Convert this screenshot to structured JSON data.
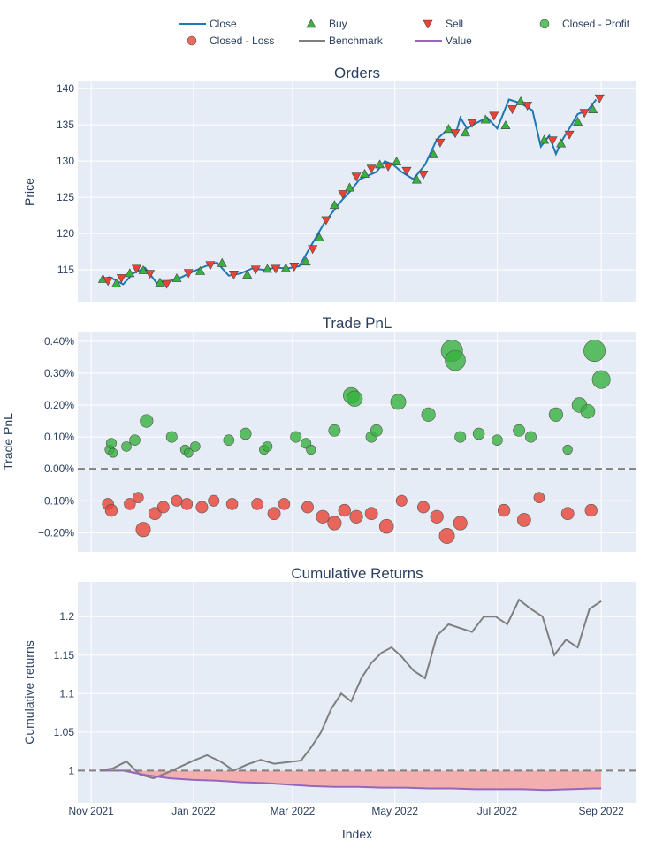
{
  "legend": [
    {
      "label": "Close",
      "kind": "line",
      "color": "#1f77b4"
    },
    {
      "label": "Buy",
      "kind": "triangle-up",
      "color": "#37B13F"
    },
    {
      "label": "Sell",
      "kind": "triangle-down",
      "color": "#EA4335"
    },
    {
      "label": "Closed - Profit",
      "kind": "circle",
      "color": "#37B13F"
    },
    {
      "label": "Closed - Loss",
      "kind": "circle",
      "color": "#EA4335"
    },
    {
      "label": "Benchmark",
      "kind": "line",
      "color": "#7f7f7f"
    },
    {
      "label": "Value",
      "kind": "line",
      "color": "#9467bd"
    }
  ],
  "colors": {
    "plot_bg": "#E5ECF6",
    "grid": "#ffffff",
    "close": "#1f77b4",
    "buy": "#37B13F",
    "sell": "#EA4335",
    "profit": "#37B13F",
    "loss": "#EA4335",
    "benchmark": "#7f7f7f",
    "value": "#9467bd",
    "drawdown_fill": "#F4A9A8",
    "zero_line": "#808080"
  },
  "xaxis": {
    "title": "Index",
    "ticks": [
      "Nov 2021",
      "Jan 2022",
      "Mar 2022",
      "May 2022",
      "Jul 2022",
      "Sep 2022"
    ],
    "tick_dates": [
      "2021-11-01",
      "2022-01-01",
      "2022-03-01",
      "2022-05-01",
      "2022-07-01",
      "2022-09-01"
    ],
    "range": [
      "2021-10-24",
      "2022-09-22"
    ]
  },
  "chart_data": [
    {
      "type": "line",
      "title": "Orders",
      "ylabel": "Price",
      "ylim": [
        110.5,
        141
      ],
      "yticks": [
        115,
        120,
        125,
        130,
        135,
        140
      ],
      "ytick_labels": [
        "115",
        "120",
        "125",
        "130",
        "135",
        "140"
      ],
      "series": [
        {
          "name": "Close",
          "x": [
            "2021-11-06",
            "2021-11-12",
            "2021-11-20",
            "2021-11-26",
            "2021-12-03",
            "2021-12-10",
            "2021-12-18",
            "2021-12-25",
            "2022-01-01",
            "2022-01-08",
            "2022-01-15",
            "2022-01-22",
            "2022-01-29",
            "2022-02-05",
            "2022-02-12",
            "2022-02-19",
            "2022-02-26",
            "2022-03-05",
            "2022-03-10",
            "2022-03-15",
            "2022-03-20",
            "2022-03-25",
            "2022-03-30",
            "2022-04-05",
            "2022-04-10",
            "2022-04-15",
            "2022-04-20",
            "2022-04-25",
            "2022-04-30",
            "2022-05-05",
            "2022-05-12",
            "2022-05-19",
            "2022-05-26",
            "2022-06-02",
            "2022-06-06",
            "2022-06-09",
            "2022-06-13",
            "2022-06-18",
            "2022-06-25",
            "2022-07-01",
            "2022-07-08",
            "2022-07-15",
            "2022-07-22",
            "2022-07-27",
            "2022-08-01",
            "2022-08-05",
            "2022-08-09",
            "2022-08-13",
            "2022-08-18",
            "2022-08-24",
            "2022-08-29"
          ],
          "y": [
            113.5,
            114.0,
            113.0,
            114.5,
            115.3,
            113.2,
            113.5,
            114.0,
            114.8,
            115.5,
            116.0,
            114.2,
            114.5,
            115.2,
            115.0,
            115.3,
            115.2,
            115.5,
            117.5,
            119.5,
            121.5,
            123.0,
            124.5,
            126.0,
            127.5,
            128.0,
            128.5,
            130.0,
            129.5,
            128.5,
            127.5,
            129.5,
            133.0,
            134.5,
            133.5,
            136.0,
            134.5,
            135.2,
            136.0,
            134.5,
            138.5,
            138.0,
            137.0,
            132.0,
            133.5,
            131.0,
            133.0,
            134.5,
            136.5,
            137.0,
            138.5
          ]
        }
      ],
      "buy_orders": {
        "x": [
          "2021-11-08",
          "2021-11-16",
          "2021-11-24",
          "2021-12-02",
          "2021-12-12",
          "2021-12-22",
          "2022-01-05",
          "2022-01-18",
          "2022-02-02",
          "2022-02-14",
          "2022-02-25",
          "2022-03-09",
          "2022-03-17",
          "2022-03-26",
          "2022-04-04",
          "2022-04-13",
          "2022-04-22",
          "2022-05-02",
          "2022-05-14",
          "2022-05-24",
          "2022-06-02",
          "2022-06-12",
          "2022-06-24",
          "2022-07-06",
          "2022-07-15",
          "2022-07-29",
          "2022-08-08",
          "2022-08-18",
          "2022-08-27"
        ],
        "y": [
          113.8,
          113.2,
          114.6,
          115.0,
          113.3,
          113.9,
          114.9,
          116.0,
          114.4,
          115.2,
          115.3,
          116.2,
          119.5,
          124.0,
          126.4,
          128.3,
          129.6,
          130.0,
          127.5,
          131.0,
          134.5,
          134.0,
          135.8,
          135.0,
          138.3,
          133.0,
          132.5,
          135.5,
          137.2
        ]
      },
      "sell_orders": {
        "x": [
          "2021-11-11",
          "2021-11-19",
          "2021-11-28",
          "2021-12-06",
          "2021-12-16",
          "2021-12-29",
          "2022-01-11",
          "2022-01-25",
          "2022-02-07",
          "2022-02-19",
          "2022-03-02",
          "2022-03-13",
          "2022-03-21",
          "2022-03-31",
          "2022-04-08",
          "2022-04-17",
          "2022-04-27",
          "2022-05-08",
          "2022-05-18",
          "2022-05-28",
          "2022-06-06",
          "2022-06-16",
          "2022-06-29",
          "2022-07-10",
          "2022-07-19",
          "2022-08-03",
          "2022-08-13",
          "2022-08-22",
          "2022-08-31"
        ],
        "y": [
          113.4,
          113.8,
          115.1,
          114.4,
          113.0,
          114.5,
          115.6,
          114.3,
          115.0,
          115.1,
          115.4,
          117.8,
          121.8,
          125.4,
          127.8,
          128.9,
          129.2,
          128.6,
          128.1,
          132.5,
          133.8,
          135.2,
          136.2,
          137.1,
          137.6,
          132.8,
          133.6,
          136.6,
          138.6
        ]
      }
    },
    {
      "type": "scatter",
      "title": "Trade PnL",
      "ylabel": "Trade PnL",
      "ylim": [
        -0.26,
        0.43
      ],
      "yticks": [
        -0.2,
        -0.1,
        0,
        0.1,
        0.2,
        0.3,
        0.4
      ],
      "ytick_labels": [
        "−0.20%",
        "−0.10%",
        "0.00%",
        "0.10%",
        "0.20%",
        "0.30%",
        "0.40%"
      ],
      "series": [
        {
          "name": "Closed - Profit",
          "x": [
            "2021-11-12",
            "2021-11-13",
            "2021-11-14",
            "2021-11-22",
            "2021-11-27",
            "2021-12-04",
            "2021-12-19",
            "2021-12-27",
            "2021-12-29",
            "2022-01-02",
            "2022-01-22",
            "2022-02-01",
            "2022-02-12",
            "2022-02-14",
            "2022-03-03",
            "2022-03-09",
            "2022-03-12",
            "2022-03-26",
            "2022-04-05",
            "2022-04-07",
            "2022-04-17",
            "2022-04-20",
            "2022-05-03",
            "2022-05-21",
            "2022-06-04",
            "2022-06-06",
            "2022-06-09",
            "2022-06-20",
            "2022-07-01",
            "2022-07-14",
            "2022-07-21",
            "2022-08-05",
            "2022-08-12",
            "2022-08-19",
            "2022-08-24",
            "2022-08-28",
            "2022-09-01"
          ],
          "y": [
            0.06,
            0.08,
            0.05,
            0.07,
            0.09,
            0.15,
            0.1,
            0.06,
            0.05,
            0.07,
            0.09,
            0.11,
            0.06,
            0.07,
            0.1,
            0.08,
            0.06,
            0.12,
            0.23,
            0.22,
            0.1,
            0.12,
            0.21,
            0.17,
            0.37,
            0.34,
            0.1,
            0.11,
            0.09,
            0.12,
            0.1,
            0.17,
            0.06,
            0.2,
            0.18,
            0.37,
            0.28
          ]
        },
        {
          "name": "Closed - Loss",
          "x": [
            "2021-11-11",
            "2021-11-13",
            "2021-11-24",
            "2021-11-29",
            "2021-12-02",
            "2021-12-09",
            "2021-12-14",
            "2021-12-22",
            "2021-12-28",
            "2022-01-06",
            "2022-01-13",
            "2022-01-24",
            "2022-02-08",
            "2022-02-18",
            "2022-02-24",
            "2022-03-10",
            "2022-03-19",
            "2022-03-26",
            "2022-04-01",
            "2022-04-08",
            "2022-04-17",
            "2022-04-26",
            "2022-05-05",
            "2022-05-18",
            "2022-05-26",
            "2022-06-01",
            "2022-06-09",
            "2022-07-05",
            "2022-07-17",
            "2022-07-26",
            "2022-08-12",
            "2022-08-26"
          ],
          "y": [
            -0.11,
            -0.13,
            -0.11,
            -0.09,
            -0.19,
            -0.14,
            -0.12,
            -0.1,
            -0.11,
            -0.12,
            -0.1,
            -0.11,
            -0.11,
            -0.14,
            -0.11,
            -0.12,
            -0.15,
            -0.17,
            -0.13,
            -0.15,
            -0.14,
            -0.18,
            -0.1,
            -0.12,
            -0.15,
            -0.21,
            -0.17,
            -0.13,
            -0.16,
            -0.09,
            -0.14,
            -0.13
          ]
        }
      ]
    },
    {
      "type": "line",
      "title": "Cumulative Returns",
      "ylabel": "Cumulative returns",
      "ylim": [
        0.958,
        1.245
      ],
      "yticks": [
        1,
        1.05,
        1.1,
        1.15,
        1.2
      ],
      "ytick_labels": [
        "1",
        "1.05",
        "1.1",
        "1.15",
        "1.2"
      ],
      "baseline": 1,
      "series": [
        {
          "name": "Benchmark",
          "x": [
            "2021-11-06",
            "2021-11-14",
            "2021-11-22",
            "2021-11-30",
            "2021-12-08",
            "2021-12-16",
            "2021-12-24",
            "2022-01-01",
            "2022-01-09",
            "2022-01-17",
            "2022-01-25",
            "2022-02-02",
            "2022-02-10",
            "2022-02-18",
            "2022-02-26",
            "2022-03-06",
            "2022-03-12",
            "2022-03-18",
            "2022-03-24",
            "2022-03-30",
            "2022-04-05",
            "2022-04-11",
            "2022-04-17",
            "2022-04-23",
            "2022-04-29",
            "2022-05-05",
            "2022-05-12",
            "2022-05-19",
            "2022-05-26",
            "2022-06-02",
            "2022-06-09",
            "2022-06-16",
            "2022-06-23",
            "2022-06-30",
            "2022-07-07",
            "2022-07-14",
            "2022-07-21",
            "2022-07-28",
            "2022-08-04",
            "2022-08-11",
            "2022-08-18",
            "2022-08-25",
            "2022-09-01"
          ],
          "y": [
            1.0,
            1.003,
            1.012,
            0.995,
            0.99,
            0.997,
            1.005,
            1.013,
            1.02,
            1.012,
            1.0,
            1.008,
            1.014,
            1.009,
            1.011,
            1.013,
            1.03,
            1.05,
            1.08,
            1.1,
            1.09,
            1.12,
            1.14,
            1.153,
            1.16,
            1.148,
            1.13,
            1.12,
            1.175,
            1.19,
            1.185,
            1.18,
            1.2,
            1.2,
            1.19,
            1.222,
            1.21,
            1.2,
            1.15,
            1.17,
            1.16,
            1.21,
            1.22
          ]
        },
        {
          "name": "Value",
          "x": [
            "2021-11-06",
            "2021-11-20",
            "2021-12-04",
            "2021-12-18",
            "2022-01-01",
            "2022-01-15",
            "2022-01-29",
            "2022-02-12",
            "2022-02-26",
            "2022-03-12",
            "2022-03-26",
            "2022-04-09",
            "2022-04-23",
            "2022-05-07",
            "2022-05-21",
            "2022-06-04",
            "2022-06-18",
            "2022-07-02",
            "2022-07-16",
            "2022-07-30",
            "2022-08-13",
            "2022-08-27",
            "2022-09-01"
          ],
          "y": [
            1.0,
            1.0,
            0.994,
            0.99,
            0.988,
            0.987,
            0.985,
            0.984,
            0.982,
            0.98,
            0.979,
            0.979,
            0.978,
            0.978,
            0.977,
            0.977,
            0.976,
            0.976,
            0.976,
            0.975,
            0.976,
            0.977,
            0.977
          ]
        }
      ]
    }
  ]
}
